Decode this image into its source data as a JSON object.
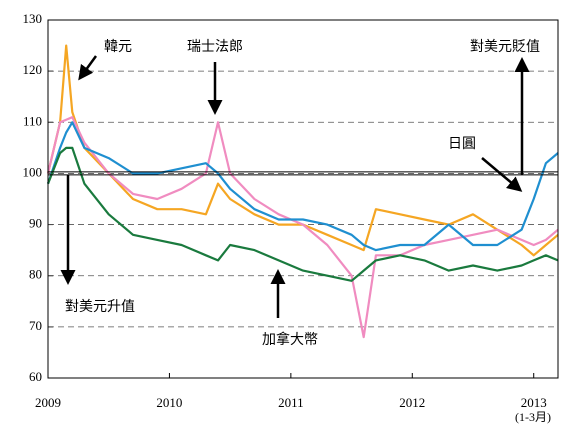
{
  "chart_data": {
    "type": "line",
    "x": [
      2009.0,
      2009.1,
      2009.15,
      2009.2,
      2009.3,
      2009.5,
      2009.7,
      2009.9,
      2010.1,
      2010.3,
      2010.4,
      2010.5,
      2010.7,
      2010.9,
      2011.1,
      2011.3,
      2011.5,
      2011.6,
      2011.7,
      2011.9,
      2012.1,
      2012.3,
      2012.5,
      2012.7,
      2012.9,
      2013.0,
      2013.1,
      2013.2
    ],
    "series": [
      {
        "name": "韓元",
        "color": "#f5a623",
        "values": [
          100,
          110,
          125,
          112,
          105,
          100,
          95,
          93,
          93,
          92,
          98,
          95,
          92,
          90,
          90,
          88,
          86,
          85,
          93,
          92,
          91,
          90,
          92,
          89,
          86,
          84,
          86,
          88
        ]
      },
      {
        "name": "瑞士法郎",
        "color": "#f08cc0",
        "values": [
          100,
          110,
          110.5,
          111,
          106,
          100,
          96,
          95,
          97,
          100,
          110,
          100,
          95,
          92,
          90,
          86,
          80,
          68,
          84,
          84,
          86,
          87,
          88,
          89,
          87,
          86,
          87,
          89
        ]
      },
      {
        "name": "日圓",
        "color": "#1f8fd0",
        "values": [
          98,
          105,
          108,
          110,
          105,
          103,
          100,
          100,
          101,
          102,
          100,
          97,
          93,
          91,
          91,
          90,
          88,
          86,
          85,
          86,
          86,
          90,
          86,
          86,
          89,
          95,
          102,
          104
        ]
      },
      {
        "name": "加拿大幣",
        "color": "#1a7a3e",
        "values": [
          98,
          104,
          105,
          105,
          98,
          92,
          88,
          87,
          86,
          84,
          83,
          86,
          85,
          83,
          81,
          80,
          79,
          81,
          83,
          84,
          83,
          81,
          82,
          81,
          82,
          83,
          84,
          83
        ]
      }
    ],
    "reference_line": 100,
    "xlim": [
      2009,
      2013.2
    ],
    "xticks": [
      2009,
      2010,
      2011,
      2012,
      2013
    ],
    "ylim": [
      60,
      130
    ],
    "yticks": [
      60,
      70,
      80,
      90,
      100,
      110,
      120,
      130
    ],
    "grid": true,
    "annotations": [
      "韓元",
      "瑞士法郎",
      "對美元貶值",
      "日圓",
      "對美元升值",
      "加拿大幣",
      "(1-3月)"
    ]
  }
}
